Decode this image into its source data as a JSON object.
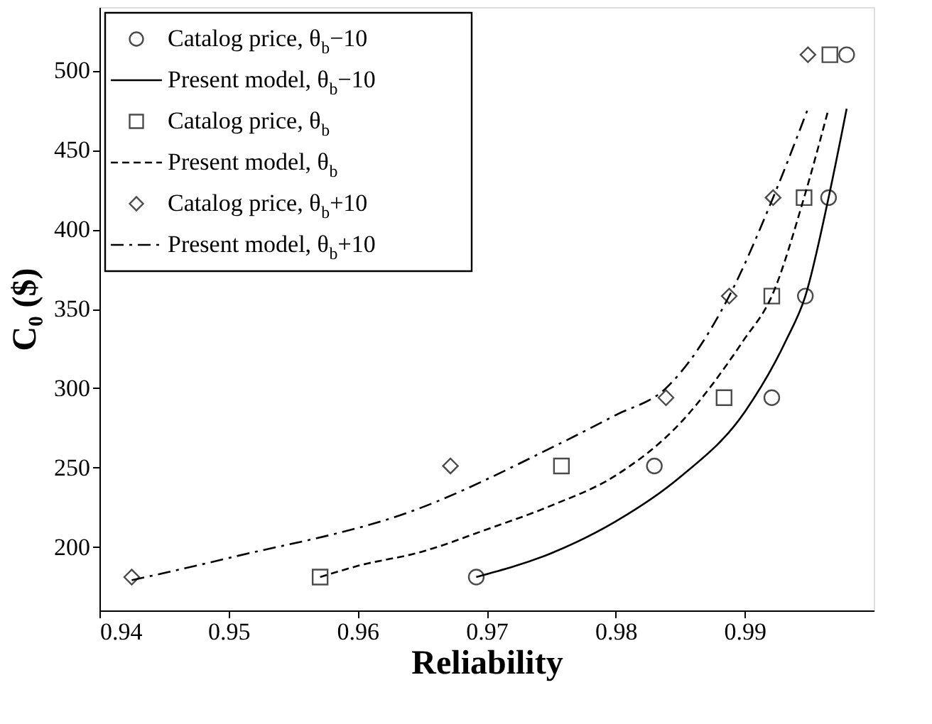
{
  "chart_data": {
    "type": "scatter",
    "xlabel": "Reliability",
    "ylabel": "C₀ ($)",
    "xlim": [
      0.94,
      1.0
    ],
    "ylim": [
      160,
      540
    ],
    "xticks": [
      0.94,
      0.95,
      0.96,
      0.97,
      0.98,
      0.99
    ],
    "yticks": [
      200,
      250,
      300,
      350,
      400,
      450,
      500
    ],
    "grid": false,
    "legend": "top left",
    "series": [
      {
        "name": "Catalog price, θ$_{b}$−10",
        "marker": "circle",
        "color": "#000000",
        "x": [
          0.9692,
          0.983,
          0.9921,
          0.9947,
          0.9965,
          0.9979
        ],
        "values": [
          181,
          251,
          294,
          358,
          420,
          510
        ]
      },
      {
        "name": "Present model, θ$_{b}$−10",
        "type": "line",
        "line_style": "solid",
        "color": "#000000",
        "x": [
          0.9692,
          0.975,
          0.98,
          0.985,
          0.99,
          0.9932,
          0.9947,
          0.9965,
          0.9979
        ],
        "values": [
          181,
          196,
          216,
          244,
          285,
          330,
          358,
          420,
          476
        ]
      },
      {
        "name": "Catalog price, θ$_{b}$",
        "marker": "square",
        "color": "#000000",
        "x": [
          0.9571,
          0.9758,
          0.9884,
          0.9921,
          0.9946,
          0.9966
        ],
        "values": [
          181,
          251,
          294,
          358,
          420,
          510
        ]
      },
      {
        "name": "Present model, θ$_{b}$",
        "type": "line",
        "line_style": "dashed",
        "color": "#000000",
        "x": [
          0.9571,
          0.96,
          0.965,
          0.97,
          0.975,
          0.98,
          0.985,
          0.9899,
          0.9921,
          0.9946,
          0.9965
        ],
        "values": [
          181,
          188,
          197,
          211,
          226,
          245,
          278,
          330,
          358,
          420,
          476
        ]
      },
      {
        "name": "Catalog price, θ$_{b}$+10",
        "marker": "diamond",
        "color": "#000000",
        "x": [
          0.9425,
          0.9672,
          0.9839,
          0.9888,
          0.9922,
          0.9949
        ],
        "values": [
          181,
          251,
          294,
          358,
          420,
          510
        ]
      },
      {
        "name": "Present model, θ$_{b}$+10",
        "type": "line",
        "line_style": "dashdot",
        "color": "#000000",
        "x": [
          0.9425,
          0.95,
          0.9647,
          0.9754,
          0.98,
          0.9839,
          0.9888,
          0.9922,
          0.9949
        ],
        "values": [
          179,
          193,
          224,
          264,
          283,
          300,
          358,
          420,
          476
        ]
      }
    ]
  }
}
